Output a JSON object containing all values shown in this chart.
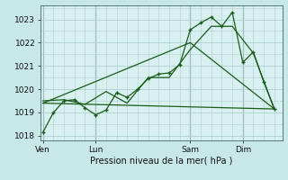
{
  "background_color": "#c8e8e8",
  "plot_bg_color": "#d8f0f0",
  "grid_color": "#b0d0d0",
  "line_color": "#1a5c1a",
  "title": "Pression niveau de la mer( hPa )",
  "ylim": [
    1017.8,
    1023.6
  ],
  "yticks": [
    1018,
    1019,
    1020,
    1021,
    1022,
    1023
  ],
  "day_labels": [
    "Ven",
    "Lun",
    "Sam",
    "Dim"
  ],
  "day_positions": [
    0,
    40,
    112,
    152
  ],
  "vline_positions": [
    0,
    40,
    112,
    152
  ],
  "xlim": [
    -2,
    182
  ],
  "series1_x": [
    0,
    8,
    16,
    24,
    32,
    40,
    48,
    56,
    64,
    72,
    80,
    88,
    96,
    104,
    112,
    120,
    128,
    136,
    144,
    152,
    160,
    168,
    176
  ],
  "series1_y": [
    1018.15,
    1019.0,
    1019.5,
    1019.55,
    1019.2,
    1018.9,
    1019.1,
    1019.85,
    1019.65,
    1020.0,
    1020.45,
    1020.65,
    1020.7,
    1021.05,
    1022.55,
    1022.85,
    1023.1,
    1022.7,
    1023.3,
    1021.15,
    1021.6,
    1020.3,
    1019.15
  ],
  "series2_x": [
    0,
    16,
    32,
    48,
    64,
    80,
    96,
    112,
    128,
    144,
    160,
    176
  ],
  "series2_y": [
    1019.5,
    1019.55,
    1019.35,
    1019.9,
    1019.4,
    1020.5,
    1020.5,
    1021.7,
    1022.7,
    1022.7,
    1021.55,
    1019.15
  ],
  "series3_x": [
    0,
    176
  ],
  "series3_y": [
    1019.4,
    1019.15
  ],
  "series4_x": [
    0,
    112,
    176
  ],
  "series4_y": [
    1019.4,
    1022.0,
    1019.15
  ]
}
